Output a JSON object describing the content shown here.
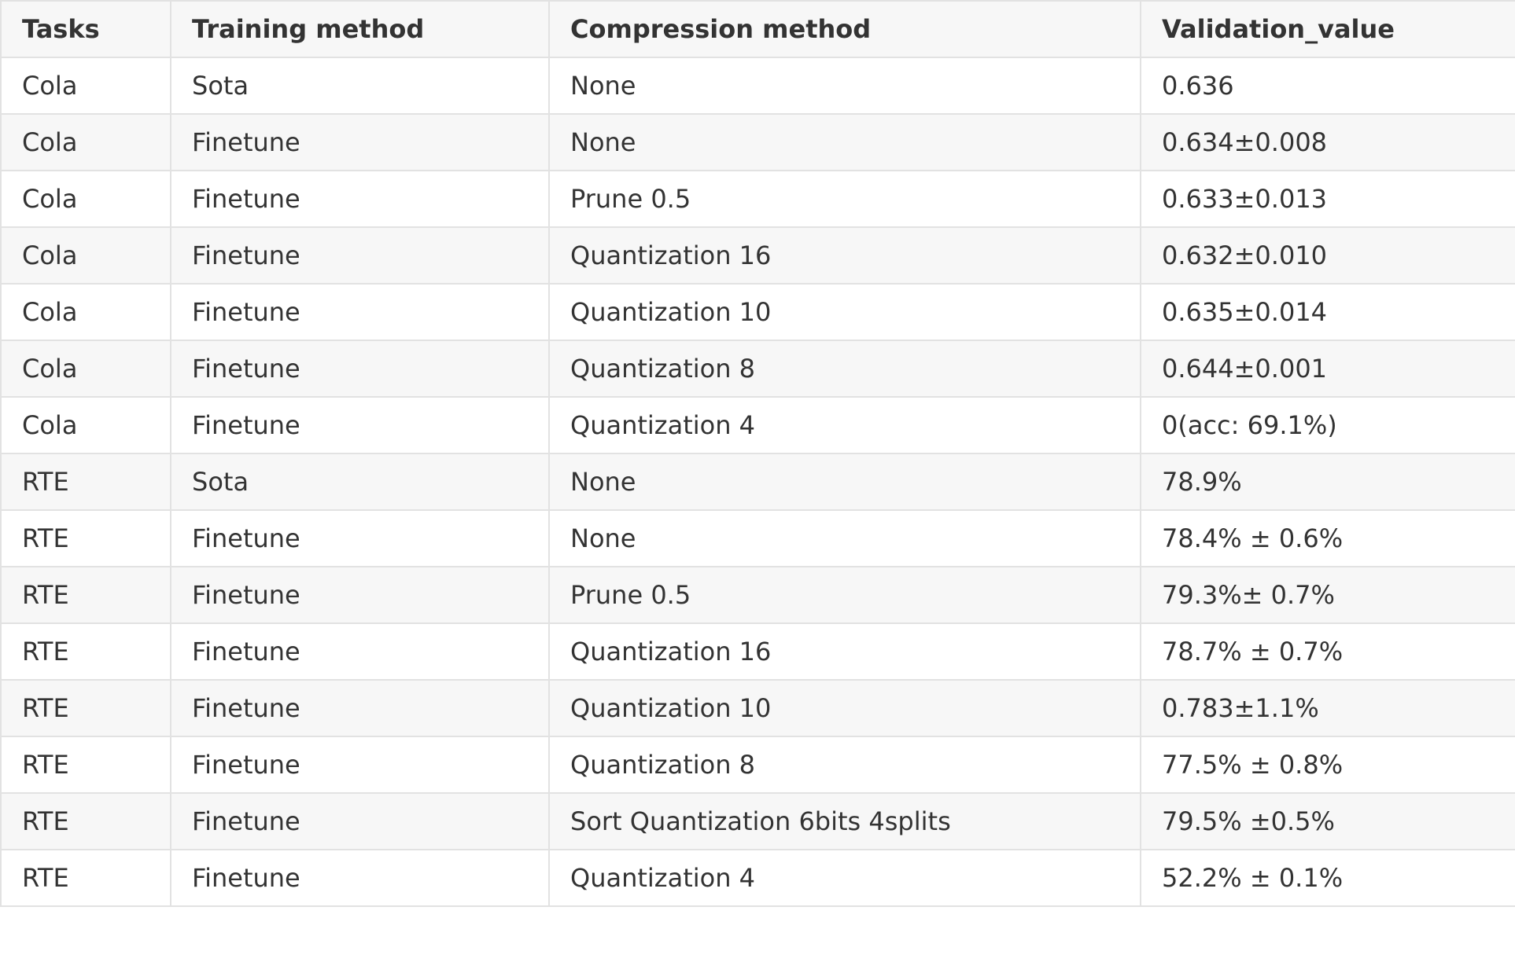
{
  "table": {
    "headers": [
      "Tasks",
      "Training method",
      "Compression method",
      "Validation_value"
    ],
    "rows": [
      [
        "Cola",
        "Sota",
        "None",
        "0.636"
      ],
      [
        "Cola",
        "Finetune",
        "None",
        "0.634±0.008"
      ],
      [
        "Cola",
        "Finetune",
        "Prune 0.5",
        "0.633±0.013"
      ],
      [
        "Cola",
        "Finetune",
        "Quantization 16",
        "0.632±0.010"
      ],
      [
        "Cola",
        "Finetune",
        "Quantization 10",
        "0.635±0.014"
      ],
      [
        "Cola",
        "Finetune",
        "Quantization 8",
        "0.644±0.001"
      ],
      [
        "Cola",
        "Finetune",
        "Quantization 4",
        "0(acc: 69.1%)"
      ],
      [
        "RTE",
        "Sota",
        "None",
        "78.9%"
      ],
      [
        "RTE",
        "Finetune",
        "None",
        "78.4% ± 0.6%"
      ],
      [
        "RTE",
        "Finetune",
        "Prune 0.5",
        "79.3%± 0.7%"
      ],
      [
        "RTE",
        "Finetune",
        "Quantization 16",
        "78.7% ± 0.7%"
      ],
      [
        "RTE",
        "Finetune",
        "Quantization 10",
        "0.783±1.1%"
      ],
      [
        "RTE",
        "Finetune",
        "Quantization 8",
        "77.5% ± 0.8%"
      ],
      [
        "RTE",
        "Finetune",
        "Sort Quantization 6bits 4splits",
        "79.5% ±0.5%"
      ],
      [
        "RTE",
        "Finetune",
        "Quantization 4",
        "52.2% ± 0.1%"
      ]
    ]
  }
}
